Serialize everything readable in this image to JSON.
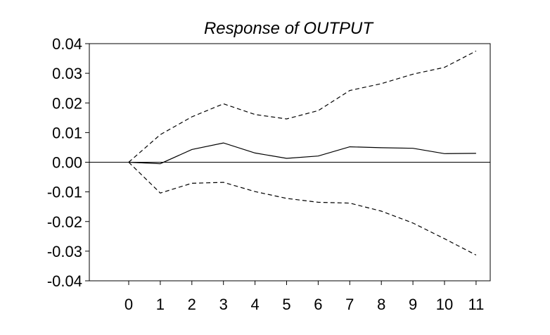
{
  "chart_data": {
    "type": "line",
    "title": "Response of OUTPUT",
    "xlabel": "",
    "ylabel": "",
    "x": [
      0,
      1,
      2,
      3,
      4,
      5,
      6,
      7,
      8,
      9,
      10,
      11
    ],
    "x_tick_labels": [
      "0",
      "1",
      "2",
      "3",
      "4",
      "5",
      "6",
      "7",
      "8",
      "9",
      "10",
      "11"
    ],
    "ylim": [
      -0.04,
      0.04
    ],
    "y_ticks": [
      0.04,
      0.03,
      0.02,
      0.01,
      0.0,
      -0.01,
      -0.02,
      -0.03,
      -0.04
    ],
    "y_tick_labels": [
      "0.04",
      "0.03",
      "0.02",
      "0.01",
      "0.00",
      "-0.01",
      "-0.02",
      "-0.03",
      "-0.04"
    ],
    "grid": false,
    "zero_line": true,
    "series": [
      {
        "style": "solid",
        "color": "#000000",
        "values": [
          0.0,
          -0.0005,
          0.0043,
          0.0065,
          0.0031,
          0.0013,
          0.0021,
          0.0052,
          0.0049,
          0.0047,
          0.0029,
          0.003
        ]
      },
      {
        "style": "dashed",
        "color": "#000000",
        "values": [
          0.0,
          0.0093,
          0.0153,
          0.0197,
          0.0161,
          0.0146,
          0.0174,
          0.0242,
          0.0265,
          0.0297,
          0.032,
          0.0375
        ]
      },
      {
        "style": "dashed",
        "color": "#000000",
        "values": [
          0.0,
          -0.0104,
          -0.0071,
          -0.0068,
          -0.0099,
          -0.0122,
          -0.0135,
          -0.0138,
          -0.0165,
          -0.0205,
          -0.0258,
          -0.0313
        ]
      }
    ]
  }
}
